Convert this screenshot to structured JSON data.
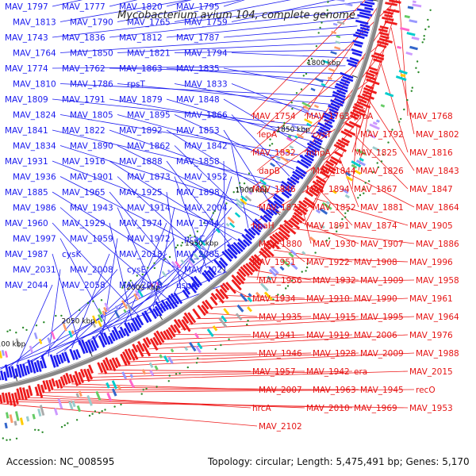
{
  "title": "Mycobacterium avium 104, complete genome",
  "footer": {
    "accession": "Accession: NC_008595",
    "summary": "Topology: circular; Length: 5,475,491 bp; Genes: 5,170"
  },
  "colors": {
    "forward": "#1c1cf0",
    "reverse": "#ee1c1c",
    "backbone": "#888888",
    "gc_dot": "#2a8a2a"
  },
  "ticks": [
    {
      "label": "1700 kbp",
      "pos": 1700
    },
    {
      "label": "1750 kbp",
      "pos": 1750
    },
    {
      "label": "1800 kbp",
      "pos": 1800
    },
    {
      "label": "1850 kbp",
      "pos": 1850
    },
    {
      "label": "1900 kbp",
      "pos": 1900
    },
    {
      "label": "1950 kbp",
      "pos": 1950
    },
    {
      "label": "2000 kbp",
      "pos": 2000
    },
    {
      "label": "2050 kbp",
      "pos": 2050
    },
    {
      "label": "2100 kbp",
      "pos": 2100
    },
    {
      "label": "2150 kbp",
      "pos": 2150
    }
  ],
  "left_labels": [
    "MAV_1797",
    "MAV_1777",
    "MAV_1820",
    "MAV_1795",
    "MAV_1813",
    "MAV_1790",
    "MAV_1765",
    "MAV_1759",
    "MAV_1743",
    "MAV_1836",
    "MAV_1812",
    "MAV_1787",
    "MAV_1764",
    "MAV_1850",
    "MAV_1821",
    "MAV_1794",
    "MAV_1774",
    "MAV_1762",
    "MAV_1863",
    "MAV_1835",
    "MAV_1810",
    "MAV_1786",
    "rpsT",
    "MAV_1833",
    "MAV_1809",
    "MAV_1791",
    "MAV_1879",
    "MAV_1848",
    "MAV_1824",
    "MAV_1805",
    "MAV_1895",
    "MAV_1866",
    "MAV_1841",
    "MAV_1822",
    "MAV_1892",
    "MAV_1853",
    "MAV_1834",
    "MAV_1890",
    "MAV_1862",
    "MAV_1842",
    "MAV_1931",
    "MAV_1916",
    "MAV_1888",
    "MAV_1858",
    "MAV_1936",
    "MAV_1901",
    "MAV_1873",
    "MAV_1952",
    "MAV_1885",
    "MAV_1965",
    "MAV_1925",
    "MAV_1898",
    "MAV_1986",
    "MAV_1943",
    "MAV_1914",
    "MAV_2004",
    "MAV_1960",
    "MAV_1929",
    "MAV_1974",
    "MAV_1944",
    "MAV_1997",
    "MAV_1959",
    "MAV_1972",
    "pcaC",
    "MAV_1987",
    "cysK",
    "MAV_2018",
    "MAV_2005",
    "MAV_2031",
    "MAV_2008",
    "cysE",
    "MAV_2021",
    "MAV_2044",
    "MAV_2058",
    "MAV_2078",
    "uspA"
  ],
  "right_labels": [
    "MAV_1754",
    "MAV_1763",
    "proA",
    "MAV_1768",
    "lepA",
    "cysT",
    "MAV_1792",
    "MAV_1802",
    "MAV_1832",
    "mhpA",
    "MAV_1825",
    "MAV_1816",
    "dapB",
    "MAV_1844",
    "MAV_1826",
    "MAV_1843",
    "MAV_1846",
    "MAV_1894",
    "MAV_1867",
    "MAV_1847",
    "MAV_1872",
    "MAV_1852",
    "MAV_1881",
    "MAV_1864",
    "hpaH",
    "MAV_1891",
    "MAV_1874",
    "MAV_1905",
    "MAV_1880",
    "MAV_1930",
    "MAV_1907",
    "MAV_1886",
    "MAV_1951",
    "MAV_1922",
    "MAV_1908",
    "MAV_1996",
    "MAV_1956",
    "MAV_1932",
    "MAV_1909",
    "MAV_1958",
    "MAV_1934",
    "MAV_1910",
    "MAV_1990",
    "MAV_1961",
    "MAV_1935",
    "MAV_1915",
    "MAV_1995",
    "MAV_1964",
    "MAV_1941",
    "MAV_1919",
    "MAV_2006",
    "MAV_1976",
    "MAV_1946",
    "MAV_1928",
    "MAV_2009",
    "MAV_1988",
    "MAV_1957",
    "MAV_1942",
    "era",
    "MAV_2015",
    "MAV_2007",
    "MAV_1963",
    "MAV_1945",
    "recO",
    "hrcA",
    "MAV_2010",
    "MAV_1969",
    "MAV_1953",
    "MAV_2102"
  ]
}
